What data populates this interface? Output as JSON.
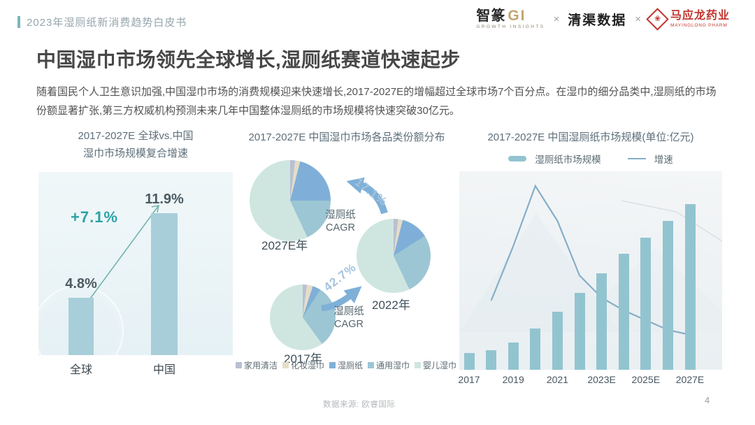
{
  "header": {
    "label": "2023年湿厕纸新消费趋势白皮书",
    "accent_color": "#7ab6bd"
  },
  "logos": {
    "zhizhuan_cn": "智篆",
    "zhizhuan_gi": "GI",
    "zhizhuan_sub": "GROWTH INSIGHTS",
    "separator": "×",
    "qingqu": "清渠数据",
    "mayinglong_cn": "马应龙药业",
    "mayinglong_sub": "MAYINGLONG PHARM",
    "mayinglong_color": "#c2362e"
  },
  "headline": "中国湿巾市场领先全球增长,湿厕纸赛道快速起步",
  "paragraph": "随着国民个人卫生意识加强,中国湿巾市场的消费规模迎来快速增长,2017-2027E的增幅超过全球市场7个百分点。在湿巾的细分品类中,湿厕纸的市场份额显著扩张,第三方权威机构预测未来几年中国整体湿厕纸的市场规模将快速突破30亿元。",
  "footer": {
    "source": "数据来源: 欧睿国际",
    "page_number": "4"
  },
  "chart_data": [
    {
      "id": "global-vs-china-cagr",
      "type": "bar",
      "title": [
        "2017-2027E 全球vs.中国",
        "湿巾市场规模复合增速"
      ],
      "categories": [
        "全球",
        "中国"
      ],
      "values": [
        4.8,
        11.9
      ],
      "value_labels": [
        "4.8%",
        "11.9%"
      ],
      "delta_label": "+7.1%",
      "ylim": [
        0,
        13
      ],
      "bar_color": "#a7ced9",
      "accent_color": "#2da2a6",
      "arrow_color": "#74b3ad"
    },
    {
      "id": "category-share-pies",
      "type": "pie",
      "title": "2017-2027E 中国湿巾市场各品类份额分布",
      "legend": [
        "家用清洁",
        "化妆湿巾",
        "湿厕纸",
        "通用湿巾",
        "婴儿湿巾"
      ],
      "colors": [
        "#b9c0d2",
        "#e4ddc9",
        "#7fafd8",
        "#9dc6d4",
        "#cfe6e0"
      ],
      "pies": [
        {
          "label": "2017年",
          "values": [
            2,
            3,
            4,
            31,
            60
          ]
        },
        {
          "label": "2022年",
          "values": [
            2,
            2,
            12,
            27,
            57
          ]
        },
        {
          "label": "2027E年",
          "values": [
            2,
            2,
            21,
            18,
            57
          ]
        }
      ],
      "cagr_notes": [
        {
          "from": "2017年",
          "to": "2022年",
          "label": "42.7%",
          "caption": "湿厕纸\nCAGR"
        },
        {
          "from": "2022年",
          "to": "2027E年",
          "label": "17.1%",
          "caption": "湿厕纸\nCAGR"
        }
      ],
      "arrow_color": "#7fb0d8"
    },
    {
      "id": "wet-toilet-paper-market-size",
      "type": "bar+line",
      "title": "2017-2027E 中国湿厕纸市场规模(单位:亿元)",
      "legend": [
        {
          "label": "湿厕纸市场规模",
          "marker": "bar"
        },
        {
          "label": "增速",
          "marker": "line"
        }
      ],
      "categories": [
        "2017",
        "2018",
        "2019",
        "2020",
        "2021",
        "2022",
        "2023E",
        "2024E",
        "2025E",
        "2026E",
        "2027E"
      ],
      "x_tick_labels": [
        "2017",
        "2019",
        "2021",
        "2023E",
        "2025E",
        "2027E"
      ],
      "series": [
        {
          "name": "湿厕纸市场规模",
          "type": "bar",
          "unit": "亿元",
          "values": [
            3,
            3.5,
            5,
            7.5,
            10.5,
            14,
            17.5,
            21,
            24,
            27,
            30
          ]
        },
        {
          "name": "增速",
          "type": "line",
          "unit": "%",
          "values": [
            null,
            28,
            50,
            74,
            60,
            38,
            29,
            24,
            20,
            16,
            14
          ]
        }
      ],
      "ylim": [
        0,
        36
      ],
      "line_ylim": [
        0,
        80
      ],
      "bar_color": "#92c4d0",
      "line_color": "#86aec8"
    }
  ]
}
